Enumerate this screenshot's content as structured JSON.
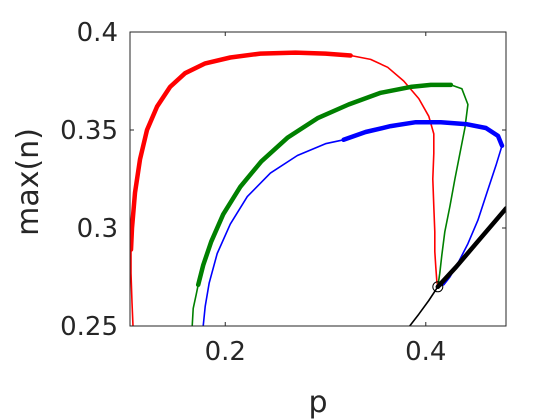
{
  "chart_data": {
    "type": "line",
    "xlabel": "p",
    "ylabel": "max(n)",
    "xlim": [
      0.105,
      0.48
    ],
    "ylim": [
      0.25,
      0.4
    ],
    "xticks": [
      {
        "value": 0.2,
        "label": "0.2"
      },
      {
        "value": 0.4,
        "label": "0.4"
      }
    ],
    "yticks": [
      {
        "value": 0.4,
        "label": "0.4"
      },
      {
        "value": 0.35,
        "label": "0.35"
      },
      {
        "value": 0.3,
        "label": "0.3"
      },
      {
        "value": 0.25,
        "label": "0.25"
      }
    ],
    "box": true,
    "grid": false,
    "series": [
      {
        "color": "#ff0000",
        "stable_segments": [
          [
            [
              0.106,
              0.289
            ],
            [
              0.107,
              0.3
            ],
            [
              0.11,
              0.318
            ],
            [
              0.115,
              0.335
            ],
            [
              0.122,
              0.35
            ],
            [
              0.132,
              0.362
            ],
            [
              0.145,
              0.372
            ],
            [
              0.16,
              0.379
            ],
            [
              0.18,
              0.384
            ],
            [
              0.205,
              0.387
            ],
            [
              0.235,
              0.389
            ],
            [
              0.27,
              0.3895
            ],
            [
              0.3,
              0.389
            ],
            [
              0.325,
              0.388
            ]
          ]
        ],
        "unstable_segments": [
          [
            [
              0.108,
              0.25
            ],
            [
              0.107,
              0.262
            ],
            [
              0.106,
              0.277
            ],
            [
              0.106,
              0.289
            ]
          ],
          [
            [
              0.325,
              0.388
            ],
            [
              0.345,
              0.386
            ],
            [
              0.362,
              0.382
            ],
            [
              0.378,
              0.375
            ],
            [
              0.393,
              0.366
            ],
            [
              0.403,
              0.357
            ],
            [
              0.408,
              0.348
            ],
            [
              0.408,
              0.338
            ],
            [
              0.407,
              0.325
            ],
            [
              0.408,
              0.311
            ],
            [
              0.409,
              0.298
            ],
            [
              0.409,
              0.288
            ],
            [
              0.41,
              0.28
            ],
            [
              0.411,
              0.273
            ],
            [
              0.412,
              0.27
            ]
          ]
        ]
      },
      {
        "color": "#008000",
        "stable_segments": [
          [
            [
              0.173,
              0.271
            ],
            [
              0.178,
              0.281
            ],
            [
              0.186,
              0.293
            ],
            [
              0.198,
              0.307
            ],
            [
              0.215,
              0.321
            ],
            [
              0.236,
              0.334
            ],
            [
              0.262,
              0.346
            ],
            [
              0.292,
              0.356
            ],
            [
              0.323,
              0.363
            ],
            [
              0.355,
              0.369
            ],
            [
              0.385,
              0.372
            ],
            [
              0.405,
              0.373
            ],
            [
              0.425,
              0.373
            ]
          ]
        ],
        "unstable_segments": [
          [
            [
              0.167,
              0.25
            ],
            [
              0.168,
              0.259
            ],
            [
              0.171,
              0.266
            ],
            [
              0.173,
              0.271
            ]
          ],
          [
            [
              0.425,
              0.373
            ],
            [
              0.436,
              0.371
            ],
            [
              0.442,
              0.363
            ],
            [
              0.439,
              0.351
            ],
            [
              0.434,
              0.338
            ],
            [
              0.429,
              0.325
            ],
            [
              0.424,
              0.311
            ],
            [
              0.419,
              0.298
            ],
            [
              0.416,
              0.286
            ],
            [
              0.414,
              0.277
            ],
            [
              0.412,
              0.27
            ]
          ]
        ]
      },
      {
        "color": "#0000ff",
        "stable_segments": [
          [
            [
              0.318,
              0.345
            ],
            [
              0.34,
              0.349
            ],
            [
              0.365,
              0.352
            ],
            [
              0.39,
              0.354
            ],
            [
              0.415,
              0.354
            ],
            [
              0.44,
              0.353
            ],
            [
              0.46,
              0.351
            ],
            [
              0.472,
              0.347
            ],
            [
              0.476,
              0.342
            ]
          ]
        ],
        "unstable_segments": [
          [
            [
              0.178,
              0.25
            ],
            [
              0.18,
              0.26
            ],
            [
              0.184,
              0.272
            ],
            [
              0.192,
              0.287
            ],
            [
              0.205,
              0.302
            ],
            [
              0.222,
              0.316
            ],
            [
              0.245,
              0.328
            ],
            [
              0.272,
              0.337
            ],
            [
              0.3,
              0.343
            ],
            [
              0.318,
              0.345
            ]
          ],
          [
            [
              0.476,
              0.342
            ],
            [
              0.47,
              0.332
            ],
            [
              0.461,
              0.318
            ],
            [
              0.452,
              0.304
            ],
            [
              0.442,
              0.292
            ],
            [
              0.432,
              0.282
            ],
            [
              0.424,
              0.275
            ],
            [
              0.418,
              0.271
            ],
            [
              0.412,
              0.27
            ]
          ]
        ]
      },
      {
        "color": "#000000",
        "stable_segments": [
          [
            [
              0.412,
              0.27
            ],
            [
              0.43,
              0.28
            ],
            [
              0.45,
              0.292
            ],
            [
              0.47,
              0.304
            ],
            [
              0.48,
              0.31
            ]
          ]
        ],
        "unstable_segments": [
          [
            [
              0.384,
              0.25
            ],
            [
              0.393,
              0.256
            ],
            [
              0.403,
              0.263
            ],
            [
              0.412,
              0.27
            ]
          ]
        ]
      }
    ],
    "markers": [
      {
        "x": 0.412,
        "y": 0.27,
        "shape": "open-circle",
        "color": "#000000"
      }
    ]
  }
}
